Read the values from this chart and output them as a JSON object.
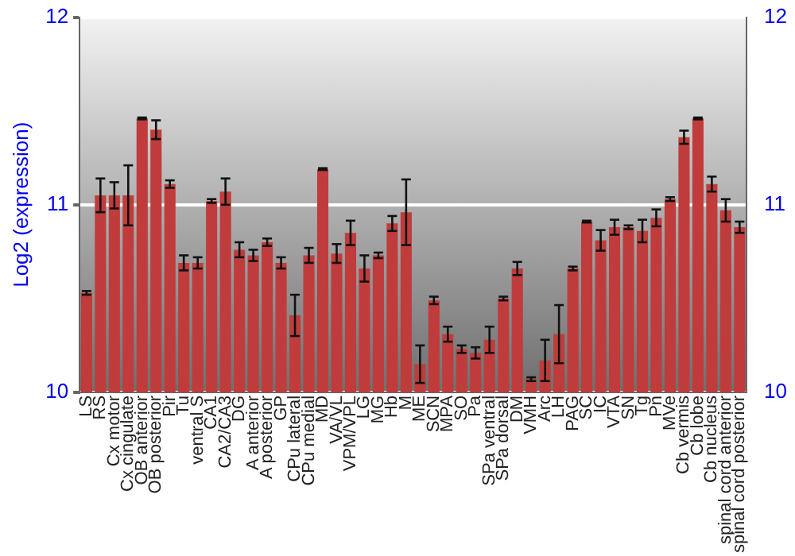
{
  "chart_data": {
    "type": "bar",
    "ylabel": "Log2 (expression)",
    "categories": [
      "LS",
      "RS",
      "Cx motor",
      "Cx cingulate",
      "OB anterior",
      "OB posterior",
      "Pir",
      "Tu",
      "ventral S",
      "CA1",
      "CA2/CA3",
      "DG",
      "A anterior",
      "A posterior",
      "GP",
      "CPu lateral",
      "CPu medial",
      "MD",
      "VA/VL",
      "VPM/VPL",
      "LG",
      "MG",
      "Hb",
      "M",
      "ME",
      "SCN",
      "MPA",
      "SO",
      "Pa",
      "SPa ventral",
      "SPa dorsal",
      "DM",
      "VMH",
      "Arc",
      "LH",
      "PAG",
      "SC",
      "IC",
      "VTA",
      "SN",
      "Tg",
      "Pn",
      "MVe",
      "Cb vermis",
      "Cb lobe",
      "Cb nucleus",
      "spinal cord anterior",
      "spinal cord posterior"
    ],
    "values": [
      10.53,
      11.05,
      11.05,
      11.05,
      11.46,
      11.4,
      11.11,
      10.69,
      10.69,
      11.02,
      11.07,
      10.76,
      10.73,
      10.8,
      10.69,
      10.41,
      10.73,
      11.19,
      10.74,
      10.85,
      10.66,
      10.73,
      10.9,
      10.96,
      10.15,
      10.49,
      10.31,
      10.23,
      10.21,
      10.28,
      10.5,
      10.66,
      10.07,
      10.17,
      10.31,
      10.66,
      10.91,
      10.81,
      10.88,
      10.88,
      10.86,
      10.93,
      11.03,
      11.36,
      11.46,
      11.11,
      10.97,
      10.88
    ],
    "errors": [
      0.01,
      0.09,
      0.07,
      0.16,
      0.005,
      0.05,
      0.02,
      0.04,
      0.03,
      0.01,
      0.07,
      0.04,
      0.03,
      0.02,
      0.03,
      0.11,
      0.04,
      0.005,
      0.05,
      0.065,
      0.07,
      0.015,
      0.04,
      0.175,
      0.1,
      0.02,
      0.04,
      0.02,
      0.03,
      0.07,
      0.01,
      0.035,
      0.01,
      0.11,
      0.155,
      0.01,
      0.005,
      0.055,
      0.04,
      0.01,
      0.06,
      0.045,
      0.01,
      0.035,
      0.005,
      0.04,
      0.06,
      0.03
    ],
    "color": "#c03c3c",
    "ylim": [
      10,
      12
    ],
    "yticks": [
      10,
      11,
      12
    ],
    "y2lim": [
      10,
      12
    ],
    "y2ticks": [
      10,
      11,
      12
    ],
    "grid": "y",
    "legend": false
  }
}
